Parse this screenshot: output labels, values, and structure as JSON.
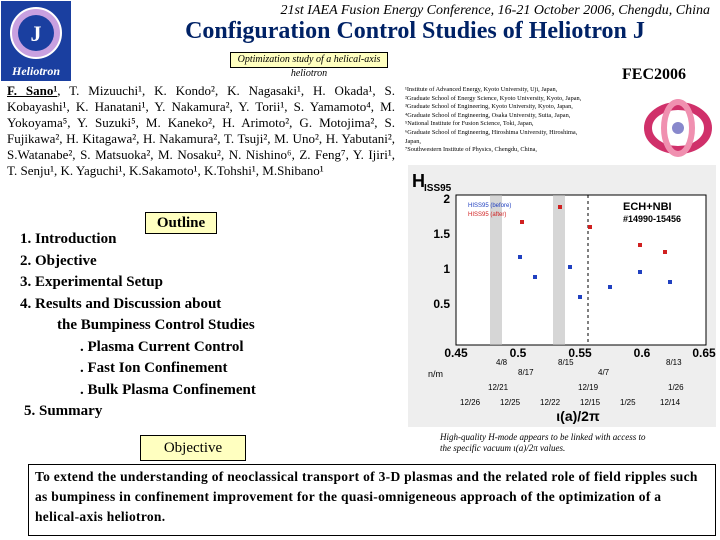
{
  "header": {
    "conference": "21st IAEA Fusion Energy Conference, 16-21 October 2006, Chengdu, China",
    "title": "Configuration Control Studies of Heliotron J",
    "subtitle": "Optimization study of a helical-axis heliotron",
    "tag": "FEC2006",
    "logo": {
      "letter": "J",
      "name": "Heliotron"
    }
  },
  "authors": {
    "presenter": "F. Sano¹",
    "rest": ", T. Mizuuchi¹, K. Kondo², K. Nagasaki¹, H. Okada¹, S. Kobayashi¹, K. Hanatani¹, Y. Nakamura², Y. Torii¹, S. Yamamoto⁴, M. Yokoyama⁵, Y. Suzuki⁵, M. Kaneko², H. Arimoto², G. Motojima², S. Fujikawa², H. Kitagawa², H. Nakamura², T. Tsuji², M. Uno², H. Yabutani², S.Watanabe², S. Matsuoka², M. Nosaku², N. Nishino⁶, Z. Feng⁷, Y. Ijiri¹, T. Senju¹, K. Yaguchi¹, K.Sakamoto¹, K.Tohshi¹, M.Shibano¹"
  },
  "affiliations": [
    "¹Institute of Advanced Energy, Kyoto University, Uji, Japan,",
    "²Graduate School of Energy Science, Kyoto University, Kyoto, Japan,",
    "³Graduate School of Engineering, Kyoto University, Kyoto, Japan,",
    "⁴Graduate School of Engineering, Osaka University, Suita, Japan,",
    "⁵National Institute for Fusion Science, Toki, Japan,",
    "⁶Graduate School of Engineering, Hiroshima University, Hiroshima,",
    "Japan,",
    "⁷Southwestern Institute of Physics, Chengdu, China,"
  ],
  "outline": {
    "heading": "Outline",
    "items": [
      "1. Introduction",
      "2. Objective",
      "3. Experimental Setup",
      "4. Results and Discussion about",
      "the Bumpiness Control Studies",
      ". Plasma Current Control",
      ". Fast Ion Confinement",
      ". Bulk Plasma Confinement",
      "5. Summary"
    ]
  },
  "figure": {
    "ylabel_main": "H",
    "ylabel_sub": "ISS95",
    "info": [
      "ECH+NBI",
      "#14990-15456"
    ],
    "legend": [
      "HISS95 (before)",
      "HISS95 (after)"
    ],
    "yticks": [
      "2",
      "1.5",
      "1",
      "0.5"
    ],
    "xticks": [
      "0.45",
      "0.5",
      "0.55",
      "0.6",
      "0.65"
    ],
    "nm_label": "n/m",
    "nm": [
      "4/8",
      "8/17",
      "8/15",
      "4/7",
      "8/13"
    ],
    "dates_top": [
      "12/21",
      "12/19",
      "1/26"
    ],
    "dates_bottom": [
      "12/26",
      "12/25",
      "12/22",
      "12/15",
      "1/25",
      "12/14"
    ],
    "xlabel": "ι(a)/2π",
    "caption": "High-quality H-mode appears to be linked with access to the specific vacuum ι(a)/2π values."
  },
  "objective": {
    "heading": "Objective",
    "text": "To extend the understanding of neoclassical transport of 3-D plasmas and the related role of field ripples such as bumpiness in confinement improvement for the quasi-omnigeneous approach of the optimization of a helical-axis heliotron."
  }
}
